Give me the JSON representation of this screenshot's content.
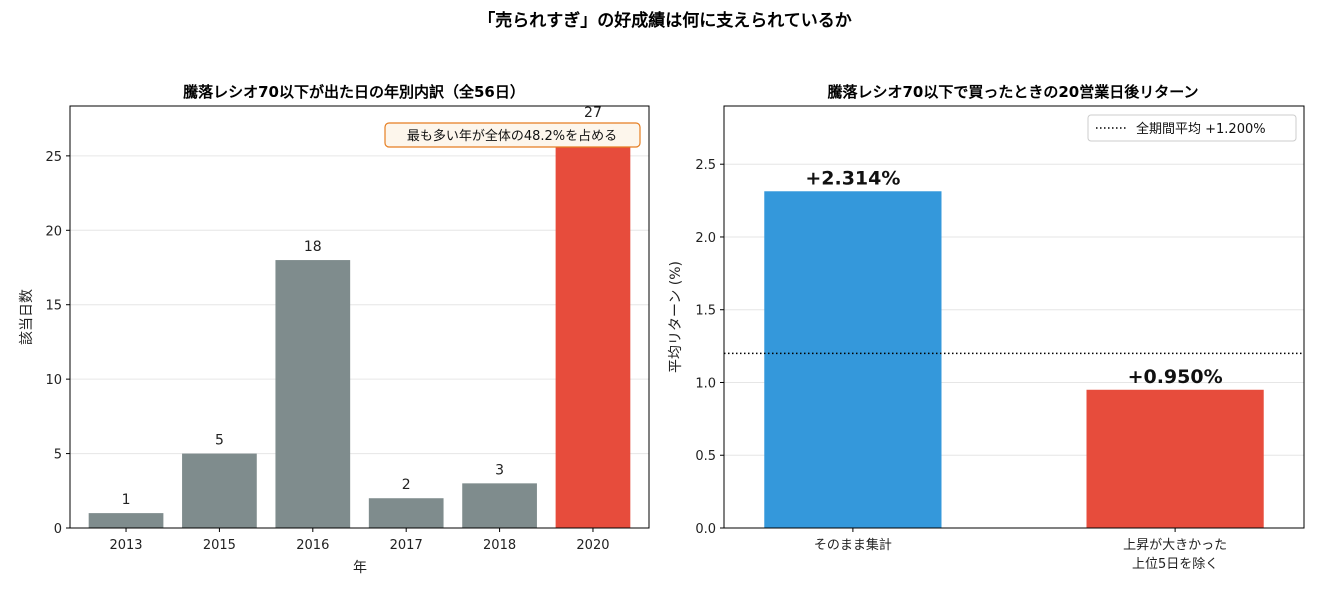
{
  "figure": {
    "suptitle": "「売られすぎ」の好成績は何に支えられているか"
  },
  "chart_data": [
    {
      "type": "bar",
      "title": "騰落レシオ70以下が出た日の年別内訳（全56日）",
      "xlabel": "年",
      "ylabel": "該当日数",
      "categories": [
        "2013",
        "2015",
        "2016",
        "2017",
        "2018",
        "2020"
      ],
      "values": [
        1,
        5,
        18,
        2,
        3,
        27
      ],
      "value_labels": [
        "1",
        "5",
        "18",
        "2",
        "3",
        "27"
      ],
      "colors": [
        "#7f8c8d",
        "#7f8c8d",
        "#7f8c8d",
        "#7f8c8d",
        "#7f8c8d",
        "#e74c3c"
      ],
      "ylim": [
        0,
        28.35
      ],
      "yticks": [
        0,
        5,
        10,
        15,
        20,
        25
      ],
      "grid": "horizontal",
      "annotation": "最も多い年が全体の48.2%を占める",
      "annotation_style": {
        "border": "#e67e22",
        "background": "#fdf6ec"
      }
    },
    {
      "type": "bar",
      "title": "騰落レシオ70以下で買ったときの20営業日後リターン",
      "xlabel": "",
      "ylabel": "平均リターン (%)",
      "categories": [
        [
          "そのまま集計"
        ],
        [
          "上昇が大きかった",
          "上位5日を除く"
        ]
      ],
      "values": [
        2.314,
        0.95
      ],
      "value_labels": [
        "+2.314%",
        "+0.950%"
      ],
      "colors": [
        "#3498db",
        "#e74c3c"
      ],
      "ylim": [
        0,
        2.9
      ],
      "yticks": [
        0.0,
        0.5,
        1.0,
        1.5,
        2.0,
        2.5
      ],
      "ytick_labels": [
        "0.0",
        "0.5",
        "1.0",
        "1.5",
        "2.0",
        "2.5"
      ],
      "grid": "horizontal",
      "reference_line": {
        "value": 1.2,
        "style": "dotted",
        "color": "#000000"
      },
      "legend": {
        "position": "top-right",
        "entries": [
          "全期間平均 +1.200%"
        ]
      }
    }
  ]
}
